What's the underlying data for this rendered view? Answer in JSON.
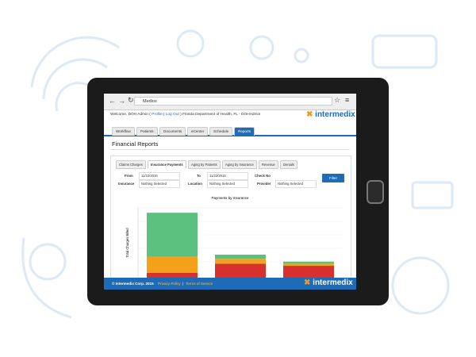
{
  "browser": {
    "address": "Medios"
  },
  "header": {
    "welcome": [
      "Welcome, DOH Admin (",
      "Profile",
      "|",
      "Log Out",
      ")",
      "Florida Department of Health, FL - DOHAdmin"
    ],
    "logo": "intermedix"
  },
  "nav": [
    "Workflow",
    "Patients",
    "Documents",
    "eCenter",
    "Schedule",
    "Reports"
  ],
  "page_title": "Financial Reports",
  "report_tabs": [
    "Claims Charges",
    "Insurance Payments",
    "Aging by Patients",
    "Aging by Insurance",
    "Revenue",
    "Denials"
  ],
  "filters": [
    {
      "label": "From",
      "value": "11/22/2015"
    },
    {
      "label": "To",
      "value": "11/22/2015"
    },
    {
      "label": "Check No"
    },
    {
      "label": "Insurance",
      "value": "Nothing Selected"
    },
    {
      "label": "Location",
      "value": "Nothing Selected"
    },
    {
      "label": "Provider",
      "value": "Nothing Selected"
    }
  ],
  "filter_button": "Filter",
  "chart_data": {
    "type": "bar",
    "title": "Payments by Insurance",
    "y_label": "Total Charges Billed",
    "stacked": true,
    "categories": [
      null,
      null,
      null
    ],
    "ylim": [
      0,
      100
    ],
    "series": [
      {
        "color": "#d7312f",
        "values": [
          7,
          20,
          17
        ]
      },
      {
        "color": "#f5a01a",
        "values": [
          23,
          7,
          3
        ]
      },
      {
        "color": "#5cc07f",
        "values": [
          63,
          6,
          3
        ]
      }
    ]
  },
  "footer": {
    "copyright": "© Intermedix Corp. 2015",
    "privacy": "Privacy Policy",
    "separator": "|",
    "terms": "Terms of Service",
    "logo": "intermedix"
  }
}
